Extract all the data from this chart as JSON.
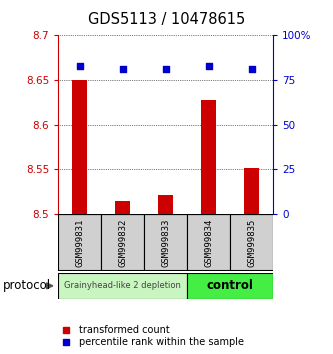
{
  "title": "GDS5113 / 10478615",
  "samples": [
    "GSM999831",
    "GSM999832",
    "GSM999833",
    "GSM999834",
    "GSM999835"
  ],
  "bar_values": [
    8.65,
    8.515,
    8.522,
    8.628,
    8.552
  ],
  "percentile_values": [
    83,
    81,
    81,
    83,
    81
  ],
  "ylim_left": [
    8.5,
    8.7
  ],
  "ylim_right": [
    0,
    100
  ],
  "yticks_left": [
    8.5,
    8.55,
    8.6,
    8.65,
    8.7
  ],
  "ytick_labels_left": [
    "8.5",
    "8.55",
    "8.6",
    "8.65",
    "8.7"
  ],
  "yticks_right": [
    0,
    25,
    50,
    75,
    100
  ],
  "ytick_labels_right": [
    "0",
    "25",
    "50",
    "75",
    "100%"
  ],
  "bar_color": "#cc0000",
  "dot_color": "#0000cc",
  "bar_bottom": 8.5,
  "group1_samples": [
    0,
    1,
    2
  ],
  "group2_samples": [
    3,
    4
  ],
  "group1_label": "Grainyhead-like 2 depletion",
  "group2_label": "control",
  "group1_color": "#c8f5c0",
  "group2_color": "#44ee44",
  "protocol_label": "protocol",
  "legend_bar_label": "transformed count",
  "legend_dot_label": "percentile rank within the sample",
  "grid_color": "#000000",
  "axis_left_color": "#cc0000",
  "axis_right_color": "#0000cc",
  "bg_color": "#ffffff"
}
